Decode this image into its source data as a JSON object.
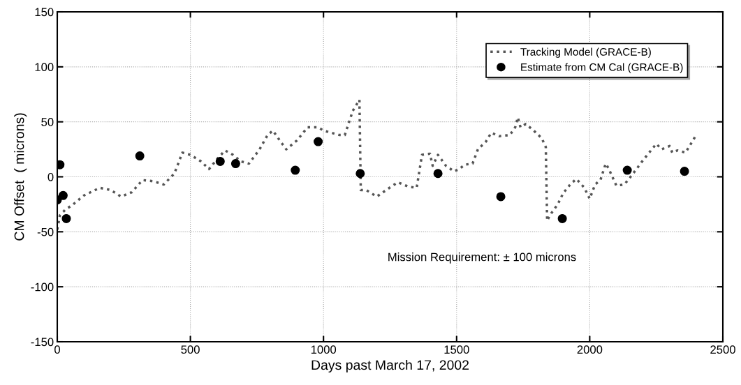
{
  "chart_data": {
    "type": "line",
    "xlabel": "Days past March 17, 2002",
    "ylabel": "CM Offset  ( microns)",
    "xlim": [
      0,
      2500
    ],
    "ylim": [
      -150,
      150
    ],
    "xticks": [
      0,
      500,
      1000,
      1500,
      2000,
      2500
    ],
    "yticks": [
      -150,
      -100,
      -50,
      0,
      50,
      100,
      150
    ],
    "grid": true,
    "legend": "top right",
    "annotations": [
      "Mission Requirement: ± 100 microns"
    ],
    "series": [
      {
        "name": "Tracking Model (GRACE-B)",
        "type": "line",
        "color": "#555555",
        "line_style": "dotted",
        "marker": "none",
        "x": [
          0,
          10,
          30,
          60,
          100,
          160,
          200,
          240,
          280,
          320,
          360,
          400,
          440,
          470,
          500,
          540,
          570,
          600,
          630,
          660,
          690,
          720,
          760,
          790,
          810,
          830,
          860,
          900,
          940,
          980,
          1000,
          1030,
          1060,
          1080,
          1110,
          1135,
          1140,
          1160,
          1200,
          1260,
          1280,
          1320,
          1350,
          1370,
          1400,
          1410,
          1430,
          1460,
          1490,
          1510,
          1530,
          1560,
          1580,
          1610,
          1630,
          1660,
          1700,
          1720,
          1730,
          1740,
          1760,
          1790,
          1820,
          1835,
          1840,
          1850,
          1880,
          1900,
          1930,
          1950,
          1980,
          2000,
          2020,
          2040,
          2060,
          2070,
          2100,
          2130,
          2160,
          2200,
          2250,
          2270,
          2300,
          2310,
          2330,
          2360,
          2380,
          2400
        ],
        "values": [
          -48,
          -35,
          -30,
          -25,
          -17,
          -10,
          -12,
          -18,
          -14,
          -3,
          -4,
          -7,
          3,
          22,
          20,
          14,
          7,
          16,
          24,
          20,
          14,
          12,
          25,
          38,
          42,
          35,
          25,
          33,
          45,
          45,
          42,
          40,
          38,
          38,
          60,
          70,
          -12,
          -12,
          -18,
          -8,
          -5,
          -9,
          -10,
          20,
          21,
          10,
          20,
          10,
          5,
          7,
          11,
          12,
          25,
          32,
          40,
          37,
          38,
          45,
          54,
          45,
          48,
          42,
          35,
          27,
          -40,
          -35,
          -25,
          -15,
          -6,
          -2,
          -10,
          -20,
          -7,
          -3,
          12,
          8,
          -8,
          -7,
          2,
          15,
          30,
          25,
          28,
          22,
          24,
          22,
          30,
          38
        ]
      },
      {
        "name": "Estimate from CM Cal (GRACE-B)",
        "type": "scatter",
        "color": "#000000",
        "marker": "circle",
        "x": [
          0,
          10,
          22,
          34,
          310,
          612,
          670,
          894,
          980,
          1138,
          1430,
          1666,
          1897,
          2141,
          2356
        ],
        "values": [
          -21,
          11,
          -17,
          -38,
          19,
          14,
          12,
          6,
          32,
          3,
          3,
          -18,
          -38,
          6,
          5
        ]
      }
    ]
  }
}
